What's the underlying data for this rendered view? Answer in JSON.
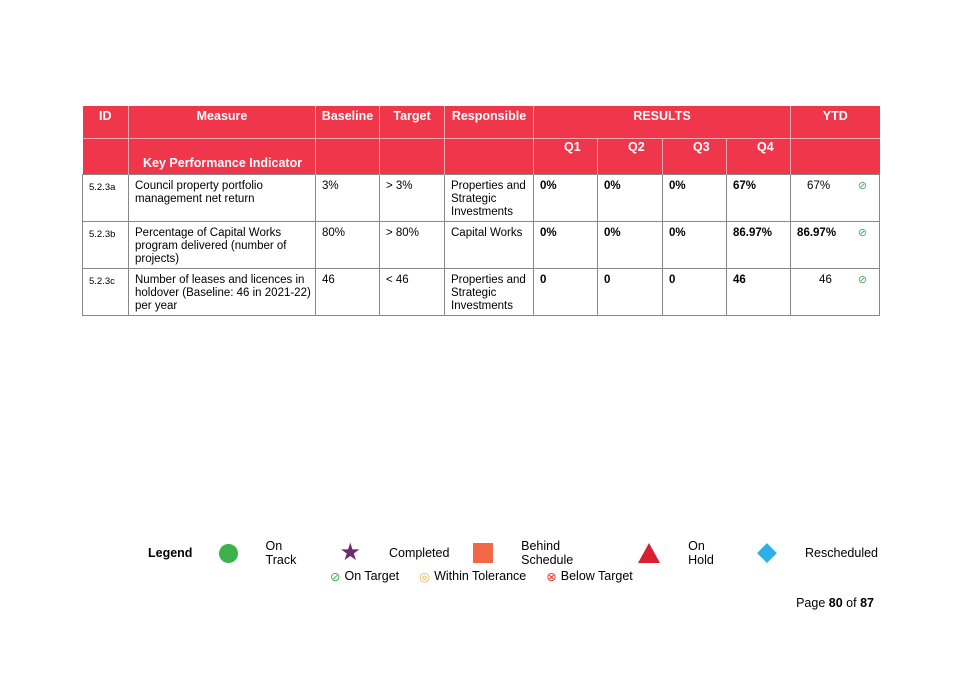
{
  "table": {
    "headers": {
      "id": "ID",
      "measure": "Measure",
      "baseline": "Baseline",
      "target": "Target",
      "responsible": "Responsible",
      "results": "RESULTS",
      "ytd": "YTD",
      "q1": "Q1",
      "q2": "Q2",
      "q3": "Q3",
      "q4": "Q4",
      "kpi": "Key Performance Indicator"
    },
    "rows": [
      {
        "id": "5.2.3a",
        "measure": "Council property portfolio management net return",
        "baseline": "3%",
        "target": "> 3%",
        "responsible": "Properties and Strategic Investments",
        "q1": "0%",
        "q2": "0%",
        "q3": "0%",
        "q4": "67%",
        "ytd": "67%",
        "status_icon": "on-target-icon"
      },
      {
        "id": "5.2.3b",
        "measure": "Percentage of Capital Works program delivered (number of projects)",
        "baseline": "80%",
        "target": "> 80%",
        "responsible": "Capital Works",
        "q1": "0%",
        "q2": "0%",
        "q3": "0%",
        "q4": "86.97%",
        "ytd": "86.97%",
        "status_icon": "on-target-icon"
      },
      {
        "id": "5.2.3c",
        "measure": "Number of leases and licences in holdover (Baseline: 46 in 2021-22) per year",
        "baseline": "46",
        "target": "< 46",
        "responsible": "Properties and Strategic Investments",
        "q1": "0",
        "q2": "0",
        "q3": "0",
        "q4": "46",
        "ytd": "46",
        "status_icon": "on-target-icon"
      }
    ]
  },
  "legend": {
    "title": "Legend",
    "items": [
      {
        "label": "On Track",
        "icon": "green-circle-icon",
        "color": "#3bb34a"
      },
      {
        "label": "Completed",
        "icon": "purple-star-icon",
        "color": "#6d2c6e"
      },
      {
        "label": "Behind Schedule",
        "icon": "orange-square-icon",
        "color": "#f26844"
      },
      {
        "label": "On Hold",
        "icon": "red-triangle-icon",
        "color": "#d92030"
      },
      {
        "label": "Rescheduled",
        "icon": "blue-diamond-icon",
        "color": "#2bb0e8"
      }
    ],
    "status": {
      "on_target": "On Target",
      "within_tolerance": "Within Tolerance",
      "below_target": "Below Target"
    }
  },
  "page": {
    "prefix": "Page",
    "current": "80",
    "of": "of",
    "total": "87"
  },
  "colors": {
    "header_red": "#f0364a",
    "on_target_green": "#3db357"
  }
}
